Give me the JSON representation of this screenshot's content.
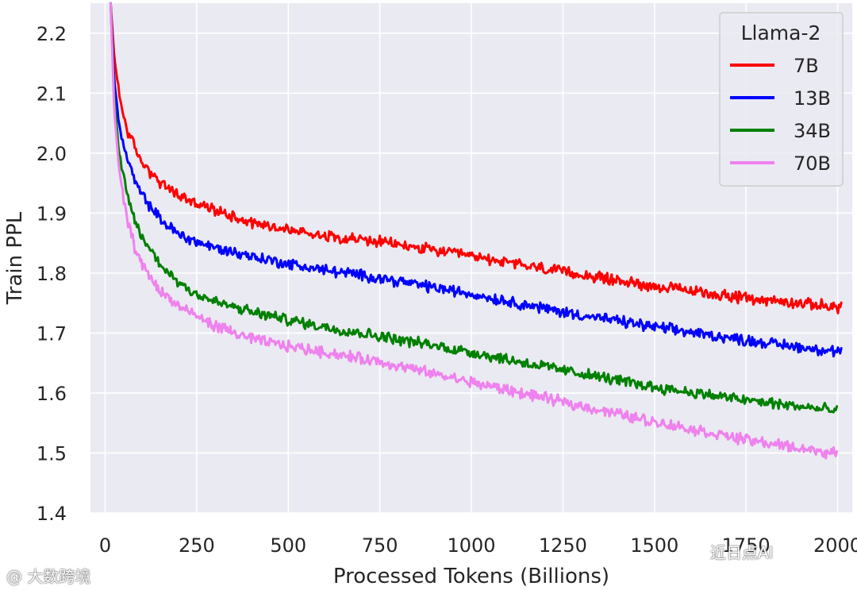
{
  "chart_data": {
    "type": "line",
    "title": "",
    "xlabel": "Processed Tokens (Billions)",
    "ylabel": "Train PPL",
    "xlim": [
      -40,
      2040
    ],
    "ylim": [
      1.4,
      2.25
    ],
    "xticks": [
      0,
      250,
      500,
      750,
      1000,
      1250,
      1500,
      1750,
      2000
    ],
    "yticks": [
      1.4,
      1.5,
      1.6,
      1.7,
      1.8,
      1.9,
      2.0,
      2.1,
      2.2
    ],
    "xtick_labels": [
      "0",
      "250",
      "500",
      "750",
      "1000",
      "1250",
      "1500",
      "1750",
      "2000"
    ],
    "ytick_labels": [
      "1.4",
      "1.5",
      "1.6",
      "1.7",
      "1.8",
      "1.9",
      "2.0",
      "2.1",
      "2.2"
    ],
    "grid": true,
    "legend": {
      "title": "Llama-2",
      "position": "top-right"
    },
    "series": [
      {
        "name": "7B",
        "color": "#ff0000",
        "x": [
          15,
          25,
          40,
          60,
          80,
          100,
          150,
          200,
          250,
          300,
          400,
          500,
          600,
          750,
          1000,
          1250,
          1500,
          1750,
          2010
        ],
        "y": [
          2.25,
          2.16,
          2.09,
          2.04,
          2.01,
          1.985,
          1.95,
          1.93,
          1.915,
          1.905,
          1.885,
          1.872,
          1.863,
          1.852,
          1.828,
          1.802,
          1.778,
          1.758,
          1.743
        ]
      },
      {
        "name": "13B",
        "color": "#0000ff",
        "x": [
          15,
          25,
          40,
          60,
          80,
          100,
          150,
          200,
          250,
          300,
          400,
          500,
          600,
          750,
          1000,
          1250,
          1500,
          1750,
          2010
        ],
        "y": [
          2.25,
          2.12,
          2.04,
          1.99,
          1.955,
          1.93,
          1.89,
          1.865,
          1.852,
          1.842,
          1.828,
          1.815,
          1.805,
          1.792,
          1.765,
          1.735,
          1.71,
          1.688,
          1.668
        ]
      },
      {
        "name": "34B",
        "color": "#008000",
        "x": [
          15,
          25,
          40,
          60,
          80,
          100,
          150,
          200,
          250,
          300,
          400,
          500,
          600,
          750,
          1000,
          1250,
          1500,
          1750,
          2000
        ],
        "y": [
          2.25,
          2.09,
          1.99,
          1.93,
          1.89,
          1.86,
          1.815,
          1.785,
          1.765,
          1.752,
          1.735,
          1.722,
          1.71,
          1.695,
          1.668,
          1.638,
          1.61,
          1.588,
          1.57
        ]
      },
      {
        "name": "70B",
        "color": "#ee82ee",
        "x": [
          15,
          25,
          40,
          60,
          80,
          100,
          150,
          200,
          250,
          300,
          400,
          500,
          600,
          750,
          1000,
          1250,
          1500,
          1750,
          2000
        ],
        "y": [
          2.25,
          2.07,
          1.96,
          1.89,
          1.845,
          1.815,
          1.77,
          1.745,
          1.728,
          1.712,
          1.69,
          1.678,
          1.668,
          1.652,
          1.618,
          1.585,
          1.552,
          1.522,
          1.498
        ]
      }
    ]
  },
  "watermarks": {
    "bottom_left": "@ 大数跨境",
    "bottom_right": "近日点AI"
  }
}
